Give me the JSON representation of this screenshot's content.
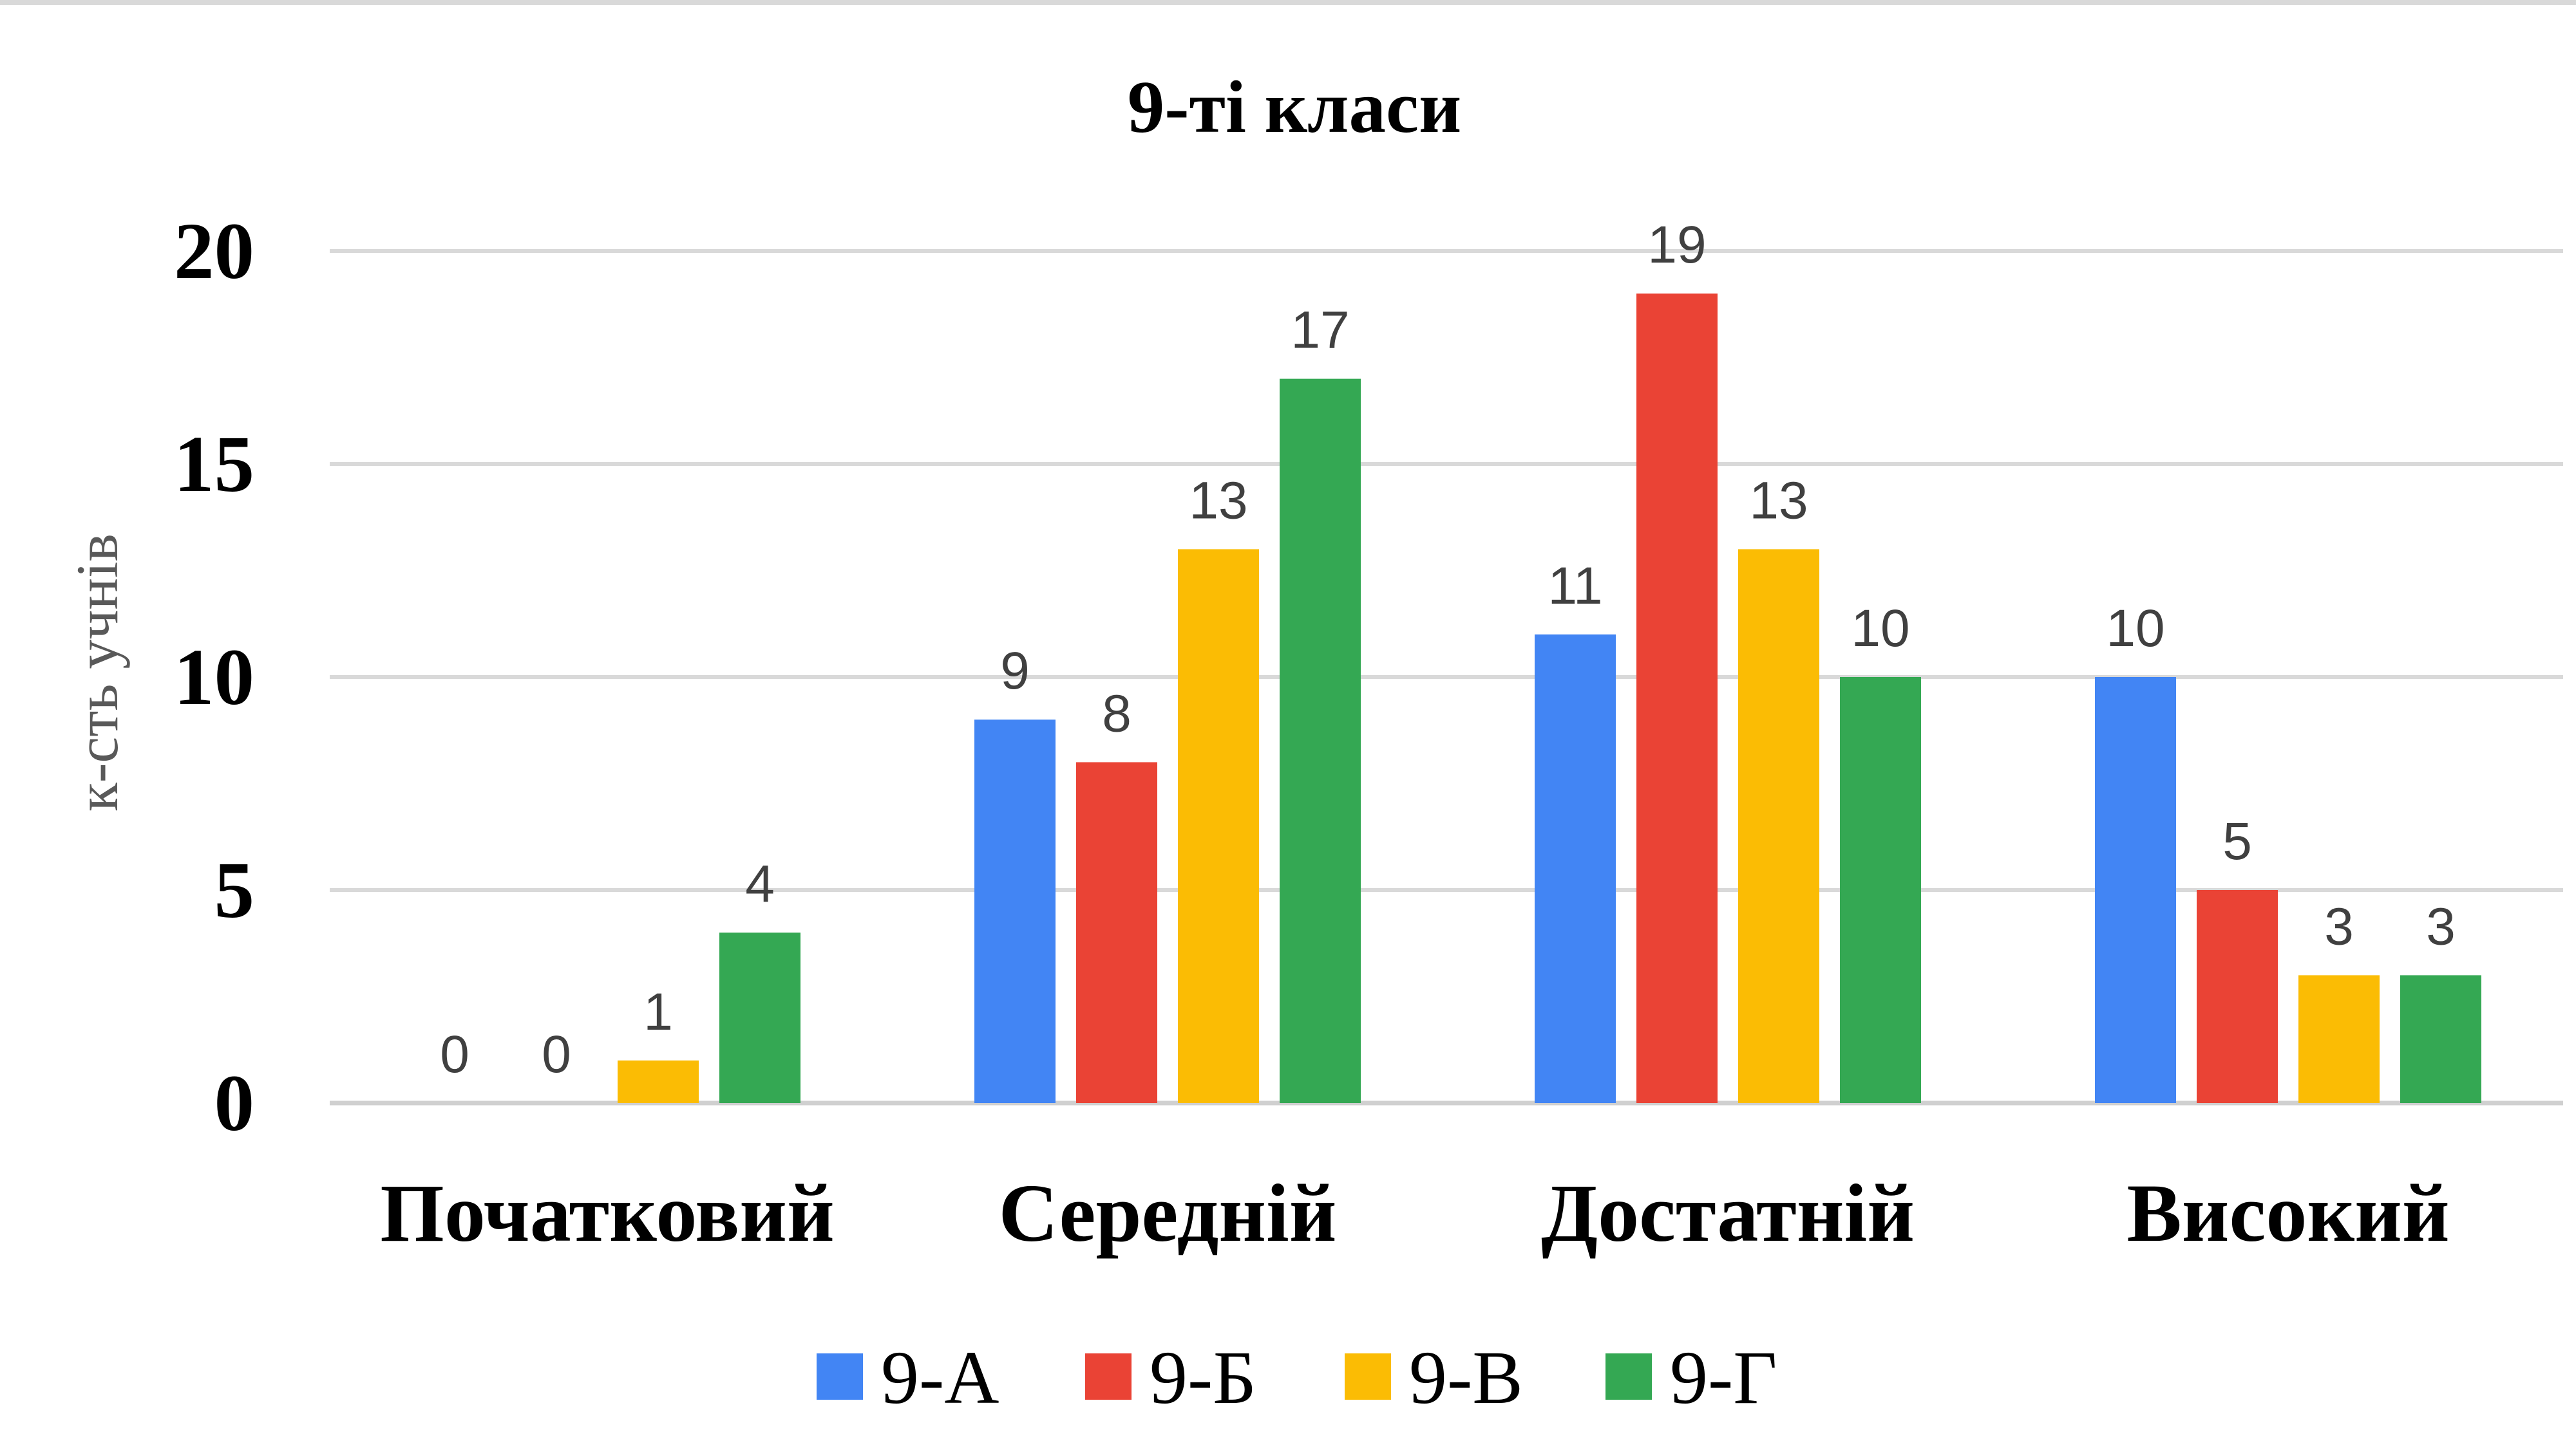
{
  "chart_data": {
    "type": "bar",
    "title": "9-ті класи",
    "xlabel": "",
    "ylabel": "к-сть учнів",
    "ylim": [
      0,
      20
    ],
    "yticks": [
      0,
      5,
      10,
      15,
      20
    ],
    "grid": true,
    "legend_position": "bottom",
    "categories": [
      "Початковий",
      "Середній",
      "Достатній",
      "Високий"
    ],
    "series": [
      {
        "name": "9-А",
        "color": "#4285F4",
        "values": [
          0,
          9,
          11,
          10
        ]
      },
      {
        "name": "9-Б",
        "color": "#EA4335",
        "values": [
          0,
          8,
          19,
          5
        ]
      },
      {
        "name": "9-В",
        "color": "#FBBC04",
        "values": [
          1,
          13,
          13,
          3
        ]
      },
      {
        "name": "9-Г",
        "color": "#34A853",
        "values": [
          4,
          17,
          10,
          3
        ]
      }
    ]
  }
}
